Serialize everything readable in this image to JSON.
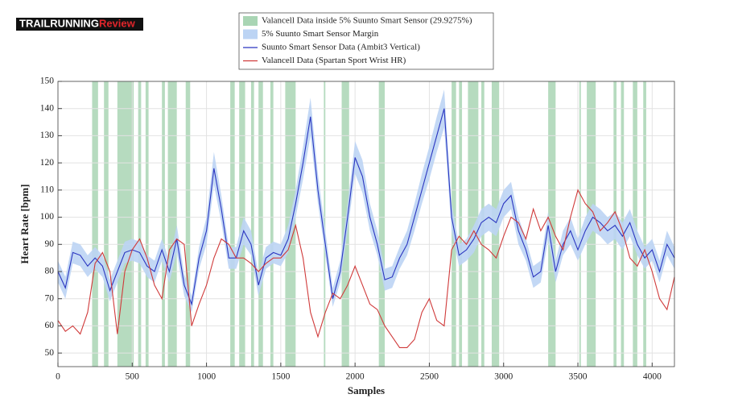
{
  "logo": {
    "parts": [
      "TRAILRUNNING",
      "Review"
    ]
  },
  "chart_data": {
    "type": "line",
    "xlabel": "Samples",
    "ylabel": "Heart Rate [bpm]",
    "xlim": [
      0,
      4150
    ],
    "xticks": [
      0,
      500,
      1000,
      1500,
      2000,
      2500,
      3000,
      3500,
      4000
    ],
    "ylim": [
      45,
      150
    ],
    "yticks": [
      50,
      60,
      70,
      80,
      90,
      100,
      110,
      120,
      130,
      140,
      150
    ],
    "grid": true,
    "x": [
      0,
      50,
      100,
      150,
      200,
      250,
      300,
      350,
      400,
      450,
      500,
      550,
      600,
      650,
      700,
      750,
      800,
      850,
      900,
      950,
      1000,
      1050,
      1100,
      1150,
      1200,
      1250,
      1300,
      1350,
      1400,
      1450,
      1500,
      1550,
      1600,
      1650,
      1700,
      1750,
      1800,
      1850,
      1900,
      1950,
      2000,
      2050,
      2100,
      2150,
      2200,
      2250,
      2300,
      2350,
      2400,
      2450,
      2500,
      2550,
      2600,
      2650,
      2700,
      2750,
      2800,
      2850,
      2900,
      2950,
      3000,
      3050,
      3100,
      3150,
      3200,
      3250,
      3300,
      3350,
      3400,
      3450,
      3500,
      3550,
      3600,
      3650,
      3700,
      3750,
      3800,
      3850,
      3900,
      3950,
      4000,
      4050,
      4100,
      4150
    ],
    "series": [
      {
        "name": "Valancell Data inside 5% Suunto Smart Sensor (29.9275%)",
        "color": "#a9d5b4",
        "intervals": [
          [
            230,
            270
          ],
          [
            310,
            340
          ],
          [
            400,
            510
          ],
          [
            540,
            560
          ],
          [
            590,
            610
          ],
          [
            700,
            720
          ],
          [
            740,
            800
          ],
          [
            860,
            890
          ],
          [
            1160,
            1190
          ],
          [
            1220,
            1260
          ],
          [
            1300,
            1320
          ],
          [
            1350,
            1380
          ],
          [
            1430,
            1450
          ],
          [
            1530,
            1600
          ],
          [
            1790,
            1800
          ],
          [
            1910,
            1960
          ],
          [
            2160,
            2200
          ],
          [
            2650,
            2680
          ],
          [
            2700,
            2720
          ],
          [
            2760,
            2830
          ],
          [
            2850,
            2870
          ],
          [
            2920,
            2970
          ],
          [
            3300,
            3350
          ],
          [
            3510,
            3520
          ],
          [
            3560,
            3620
          ],
          [
            3740,
            3760
          ],
          [
            3790,
            3810
          ],
          [
            3870,
            3900
          ],
          [
            3940,
            3960
          ]
        ]
      },
      {
        "name": "5% Suunto Smart Sensor Margin",
        "color": "#bcd4f4",
        "lower": [
          76,
          70,
          83,
          82,
          78,
          81,
          78,
          69,
          76,
          83,
          84,
          83,
          78,
          76,
          84,
          76,
          87,
          71,
          65,
          81,
          90,
          112,
          98,
          81,
          81,
          90,
          86,
          71,
          81,
          83,
          82,
          87,
          100,
          114,
          130,
          105,
          86,
          67,
          76,
          95,
          116,
          109,
          95,
          86,
          73,
          74,
          81,
          86,
          95,
          105,
          114,
          124,
          133,
          95,
          82,
          84,
          87,
          93,
          95,
          93,
          100,
          103,
          90,
          84,
          74,
          76,
          92,
          76,
          86,
          90,
          84,
          90,
          95,
          93,
          90,
          92,
          88,
          93,
          86,
          81,
          84,
          76,
          86,
          81
        ],
        "upper": [
          84,
          78,
          91,
          90,
          86,
          89,
          86,
          77,
          84,
          91,
          92,
          91,
          86,
          84,
          92,
          84,
          97,
          79,
          71,
          89,
          100,
          124,
          108,
          89,
          89,
          100,
          95,
          79,
          89,
          91,
          90,
          97,
          110,
          126,
          144,
          116,
          95,
          74,
          84,
          105,
          128,
          121,
          105,
          95,
          81,
          82,
          89,
          95,
          105,
          116,
          126,
          137,
          147,
          105,
          90,
          92,
          97,
          103,
          105,
          103,
          110,
          113,
          100,
          92,
          82,
          84,
          102,
          84,
          95,
          100,
          92,
          100,
          105,
          103,
          100,
          102,
          98,
          103,
          95,
          89,
          92,
          84,
          95,
          89
        ]
      },
      {
        "name": "Suunto Smart Sensor Data (Ambit3 Vertical)",
        "color": "#2a35c0",
        "values": [
          80,
          74,
          87,
          86,
          82,
          85,
          82,
          73,
          80,
          87,
          88,
          87,
          82,
          80,
          88,
          80,
          92,
          75,
          68,
          85,
          95,
          118,
          103,
          85,
          85,
          95,
          90,
          75,
          85,
          87,
          86,
          92,
          105,
          120,
          137,
          110,
          90,
          70,
          80,
          100,
          122,
          115,
          100,
          90,
          77,
          78,
          85,
          90,
          100,
          110,
          120,
          130,
          140,
          100,
          86,
          88,
          92,
          98,
          100,
          98,
          105,
          108,
          95,
          88,
          78,
          80,
          97,
          80,
          90,
          95,
          88,
          95,
          100,
          98,
          95,
          97,
          93,
          98,
          90,
          85,
          88,
          80,
          90,
          85
        ]
      },
      {
        "name": "Valancell Data (Spartan Sport Wrist HR)",
        "color": "#d03a3a",
        "values": [
          62,
          58,
          60,
          57,
          65,
          83,
          87,
          80,
          57,
          80,
          88,
          92,
          85,
          75,
          70,
          88,
          92,
          90,
          60,
          68,
          75,
          85,
          92,
          90,
          85,
          85,
          83,
          80,
          83,
          85,
          85,
          88,
          97,
          85,
          65,
          56,
          65,
          72,
          70,
          75,
          82,
          75,
          68,
          66,
          60,
          56,
          52,
          52,
          55,
          65,
          70,
          62,
          60,
          88,
          93,
          90,
          95,
          90,
          88,
          85,
          93,
          100,
          98,
          92,
          103,
          95,
          100,
          93,
          88,
          100,
          110,
          105,
          102,
          95,
          98,
          102,
          95,
          85,
          82,
          88,
          80,
          70,
          66,
          78
        ]
      }
    ]
  }
}
